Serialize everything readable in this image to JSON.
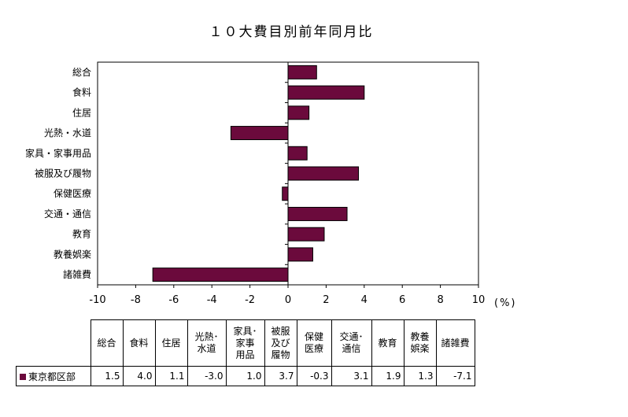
{
  "chart_data": {
    "type": "bar",
    "orientation": "horizontal",
    "title": "１０大費目別前年同月比",
    "unit_label": "(%)",
    "categories": [
      "総合",
      "食料",
      "住居",
      "光熱・水道",
      "家具・家事用品",
      "被服及び履物",
      "保健医療",
      "交通・通信",
      "教育",
      "教養娯楽",
      "諸雑費"
    ],
    "series": [
      {
        "name": "東京都区部",
        "values": [
          1.5,
          4.0,
          1.1,
          -3.0,
          1.0,
          3.7,
          -0.3,
          3.1,
          1.9,
          1.3,
          -7.1
        ]
      }
    ],
    "xlim": [
      -10,
      10
    ],
    "x_ticks": [
      "-10",
      "-8",
      "-6",
      "-4",
      "-2",
      "0",
      "2",
      "4",
      "6",
      "8",
      "10"
    ],
    "grid": false,
    "bar_color": "#6b0a3c"
  },
  "table": {
    "headers": [
      [
        "総合"
      ],
      [
        "食料"
      ],
      [
        "住居"
      ],
      [
        "光熱･",
        "水道"
      ],
      [
        "家具･",
        "家事",
        "用品"
      ],
      [
        "被服",
        "及び",
        "履物"
      ],
      [
        "保健",
        "医療"
      ],
      [
        "交通･",
        "通信"
      ],
      [
        "教育"
      ],
      [
        "教養",
        "娯楽"
      ],
      [
        "諸雑費"
      ]
    ],
    "row_label": "東京都区部",
    "row_values": [
      "1.5",
      "4.0",
      "1.1",
      "-3.0",
      "1.0",
      "3.7",
      "-0.3",
      "3.1",
      "1.9",
      "1.3",
      "-7.1"
    ]
  }
}
